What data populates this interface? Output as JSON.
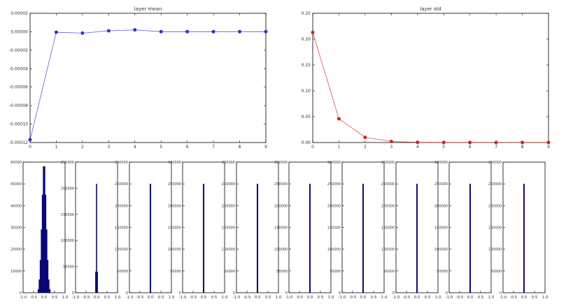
{
  "chart_data": [
    {
      "type": "line",
      "title": "layer mean",
      "xlabel": "",
      "ylabel": "",
      "x": [
        0,
        1,
        2,
        3,
        4,
        5,
        6,
        7,
        8,
        9
      ],
      "series": [
        {
          "values": [
            -0.000117,
            -5e-07,
            -1.5e-06,
            1e-06,
            2e-06,
            1e-07,
            1e-07,
            1e-07,
            1e-07,
            1e-07
          ],
          "color": "#3333cc",
          "marker": "circle"
        }
      ],
      "xlim": [
        0,
        9
      ],
      "ylim": [
        -0.00012,
        2e-05
      ],
      "xticks": [
        "0",
        "1",
        "2",
        "3",
        "4",
        "5",
        "6",
        "7",
        "8",
        "9"
      ],
      "yticks": [
        "0.00002",
        "0.00000",
        "-0.00002",
        "-0.00004",
        "-0.00006",
        "-0.00008",
        "-0.00010",
        "-0.00012"
      ],
      "grid": false
    },
    {
      "type": "line",
      "title": "layer std",
      "xlabel": "",
      "ylabel": "",
      "x": [
        0,
        1,
        2,
        3,
        4,
        5,
        6,
        7,
        8,
        9
      ],
      "series": [
        {
          "values": [
            0.213,
            0.046,
            0.01,
            0.002,
            0.0004,
            0.0001,
            0.0,
            0.0,
            0.0,
            0.0
          ],
          "color": "#cc2222",
          "marker": "circle"
        }
      ],
      "xlim": [
        0,
        9
      ],
      "ylim": [
        0,
        0.25
      ],
      "xticks": [
        "0",
        "1",
        "2",
        "3",
        "4",
        "5",
        "6",
        "7",
        "8",
        "9"
      ],
      "yticks": [
        "0.25",
        "0.20",
        "0.15",
        "0.10",
        "0.05",
        "0.00"
      ],
      "grid": false
    },
    {
      "type": "bar",
      "title": "",
      "histogram": true,
      "color": "#0b0b8c",
      "xlim": [
        -1.0,
        1.0
      ],
      "ylim": [
        0,
        60000
      ],
      "xticks": [
        "-1.0",
        "-0.5",
        "0.0",
        "0.5",
        "1.0"
      ],
      "yticks": [
        "60000",
        "50000",
        "40000",
        "30000",
        "20000",
        "10000",
        "0"
      ],
      "bin_edges": [
        -0.3,
        -0.25,
        -0.2,
        -0.15,
        -0.1,
        -0.05,
        0.0,
        0.05,
        0.1,
        0.15,
        0.2,
        0.25,
        0.3
      ],
      "values": [
        1500,
        6000,
        15000,
        29000,
        45000,
        58000,
        58000,
        45000,
        29000,
        15000,
        6000,
        1500
      ]
    },
    {
      "type": "bar",
      "title": "",
      "histogram": true,
      "color": "#0b0b8c",
      "xlim": [
        -1.0,
        1.0
      ],
      "ylim": [
        0,
        250000
      ],
      "xticks": [
        "-1.0",
        "-0.5",
        "0.0",
        "0.5",
        "1.0"
      ],
      "yticks": [
        "250000",
        "200000",
        "150000",
        "100000",
        "50000",
        "0"
      ],
      "bin_edges": [
        -0.06,
        -0.02,
        0.02,
        0.06
      ],
      "values": [
        40000,
        208000,
        40000
      ]
    },
    {
      "type": "bar",
      "title": "",
      "histogram": true,
      "color": "#0b0b8c",
      "xlim": [
        -1.0,
        1.0
      ],
      "ylim": [
        0,
        300000
      ],
      "xticks": [
        "-1.0",
        "-0.5",
        "0.0",
        "0.5",
        "1.0"
      ],
      "yticks": [
        "300000",
        "250000",
        "200000",
        "150000",
        "100000",
        "50000",
        "0"
      ],
      "bin_edges": [
        -0.03,
        0.03
      ],
      "values": [
        250000
      ]
    },
    {
      "type": "bar",
      "title": "",
      "histogram": true,
      "color": "#0b0b8c",
      "xlim": [
        -1.0,
        1.0
      ],
      "ylim": [
        0,
        300000
      ],
      "xticks": [
        "-1.0",
        "-0.5",
        "0.0",
        "0.5",
        "1.0"
      ],
      "yticks": [
        "300000",
        "250000",
        "200000",
        "150000",
        "100000",
        "50000",
        "0"
      ],
      "bin_edges": [
        -0.03,
        0.03
      ],
      "values": [
        250000
      ]
    },
    {
      "type": "bar",
      "title": "",
      "histogram": true,
      "color": "#0b0b8c",
      "xlim": [
        -1.0,
        1.0
      ],
      "ylim": [
        0,
        300000
      ],
      "xticks": [
        "-1.0",
        "-0.5",
        "0.0",
        "0.5",
        "1.0"
      ],
      "yticks": [
        "300000",
        "250000",
        "200000",
        "150000",
        "100000",
        "50000",
        "0"
      ],
      "bin_edges": [
        -0.03,
        0.03
      ],
      "values": [
        250000
      ]
    },
    {
      "type": "bar",
      "title": "",
      "histogram": true,
      "color": "#0b0b8c",
      "xlim": [
        -1.0,
        1.0
      ],
      "ylim": [
        0,
        300000
      ],
      "xticks": [
        "-1.0",
        "-0.5",
        "0.0",
        "0.5",
        "1.0"
      ],
      "yticks": [
        "300000",
        "250000",
        "200000",
        "150000",
        "100000",
        "50000",
        "0"
      ],
      "bin_edges": [
        -0.03,
        0.03
      ],
      "values": [
        250000
      ]
    },
    {
      "type": "bar",
      "title": "",
      "histogram": true,
      "color": "#0b0b8c",
      "xlim": [
        -1.0,
        1.0
      ],
      "ylim": [
        0,
        300000
      ],
      "xticks": [
        "-1.0",
        "-0.5",
        "0.0",
        "0.5",
        "1.0"
      ],
      "yticks": [
        "300000",
        "250000",
        "200000",
        "150000",
        "100000",
        "50000",
        "0"
      ],
      "bin_edges": [
        -0.03,
        0.03
      ],
      "values": [
        250000
      ]
    },
    {
      "type": "bar",
      "title": "",
      "histogram": true,
      "color": "#0b0b8c",
      "xlim": [
        -1.0,
        1.0
      ],
      "ylim": [
        0,
        300000
      ],
      "xticks": [
        "-1.0",
        "-0.5",
        "0.0",
        "0.5",
        "1.0"
      ],
      "yticks": [
        "300000",
        "250000",
        "200000",
        "150000",
        "100000",
        "50000",
        "0"
      ],
      "bin_edges": [
        -0.03,
        0.03
      ],
      "values": [
        250000
      ]
    },
    {
      "type": "bar",
      "title": "",
      "histogram": true,
      "color": "#0b0b8c",
      "xlim": [
        -1.0,
        1.0
      ],
      "ylim": [
        0,
        300000
      ],
      "xticks": [
        "-1.0",
        "-0.5",
        "0.0",
        "0.5",
        "1.0"
      ],
      "yticks": [
        "300000",
        "250000",
        "200000",
        "150000",
        "100000",
        "50000",
        "0"
      ],
      "bin_edges": [
        -0.03,
        0.03
      ],
      "values": [
        250000
      ]
    },
    {
      "type": "bar",
      "title": "",
      "histogram": true,
      "color": "#0b0b8c",
      "xlim": [
        -1.0,
        1.0
      ],
      "ylim": [
        0,
        300000
      ],
      "xticks": [
        "-1.0",
        "-0.5",
        "0.0",
        "0.5",
        "1.0"
      ],
      "yticks": [
        "300000",
        "250000",
        "200000",
        "150000",
        "100000",
        "50000",
        "0"
      ],
      "bin_edges": [
        -0.03,
        0.03
      ],
      "values": [
        250000
      ]
    }
  ]
}
